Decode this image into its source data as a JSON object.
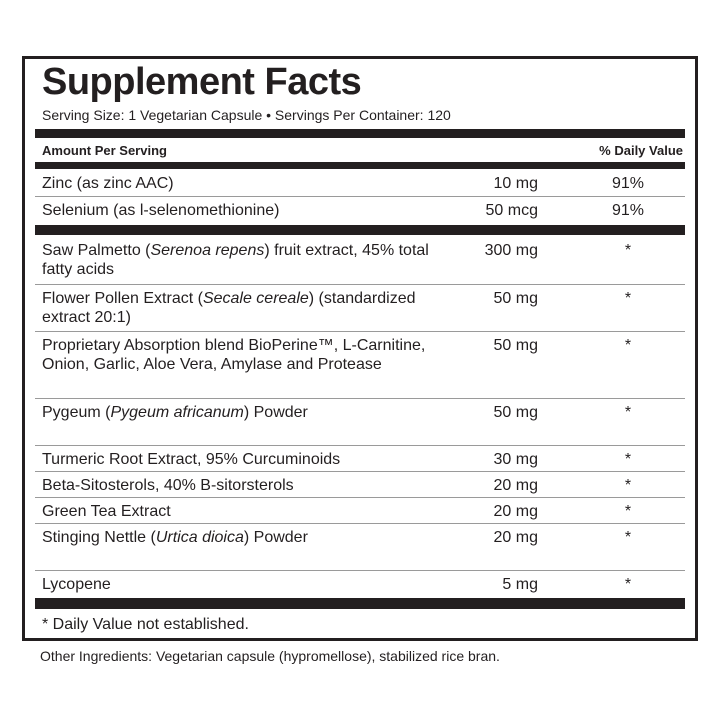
{
  "title": "Supplement Facts",
  "serving": "Serving Size: 1 Vegetarian Capsule  •  Servings Per Container: 120",
  "header": {
    "amount": "Amount Per Serving",
    "dv": "% Daily Value"
  },
  "groups": [
    [
      {
        "name": [
          {
            "t": "Zinc (as zinc AAC)"
          }
        ],
        "amount": "10 mg",
        "dv": "91%",
        "h": 27
      },
      {
        "name": [
          {
            "t": "Selenium (as l-selenomethionine)"
          }
        ],
        "amount": "50 mcg",
        "dv": "91%",
        "h": 27
      }
    ],
    [
      {
        "name": [
          {
            "t": "Saw Palmetto ("
          },
          {
            "t": "Serenoa repens",
            "i": true
          },
          {
            "t": ") fruit extract, 45% total fatty acids"
          }
        ],
        "amount": "300 mg",
        "dv": "*",
        "h": 48
      },
      {
        "name": [
          {
            "t": "Flower Pollen Extract "
          },
          {
            "t": "("
          },
          {
            "t": "Secale cereale",
            "i": true
          },
          {
            "t": ") (standardized extract 20:1)"
          }
        ],
        "amount": "50 mg",
        "dv": "*",
        "h": 47
      },
      {
        "name": [
          {
            "t": "Proprietary Absorption blend BioPerine™, L-Carnitine, Onion, Garlic, Aloe Vera, Amylase and Protease"
          }
        ],
        "amount": "50 mg",
        "dv": "*",
        "h": 67
      },
      {
        "name": [
          {
            "t": "Pygeum ("
          },
          {
            "t": "Pygeum africanum",
            "i": true
          },
          {
            "t": ") Powder"
          }
        ],
        "amount": "50 mg",
        "dv": "*",
        "h": 47
      },
      {
        "name": [
          {
            "t": "Turmeric Root Extract, 95% Curcuminoids"
          }
        ],
        "amount": "30 mg",
        "dv": "*",
        "h": 26
      },
      {
        "name": [
          {
            "t": "Beta-Sitosterols, 40% B-sitorsterols"
          }
        ],
        "amount": "20 mg",
        "dv": "*",
        "h": 26
      },
      {
        "name": [
          {
            "t": "Green Tea Extract"
          }
        ],
        "amount": "20 mg",
        "dv": "*",
        "h": 26
      },
      {
        "name": [
          {
            "t": "Stinging Nettle ("
          },
          {
            "t": "Urtica dioica",
            "i": true
          },
          {
            "t": ") Powder"
          }
        ],
        "amount": "20 mg",
        "dv": "*",
        "h": 47
      },
      {
        "name": [
          {
            "t": "Lycopene"
          }
        ],
        "amount": "5 mg",
        "dv": "*",
        "h": 26
      }
    ]
  ],
  "footnote": "* Daily Value not established.",
  "other_ingredients": "Other Ingredients: Vegetarian capsule (hypromellose), stabilized rice bran."
}
